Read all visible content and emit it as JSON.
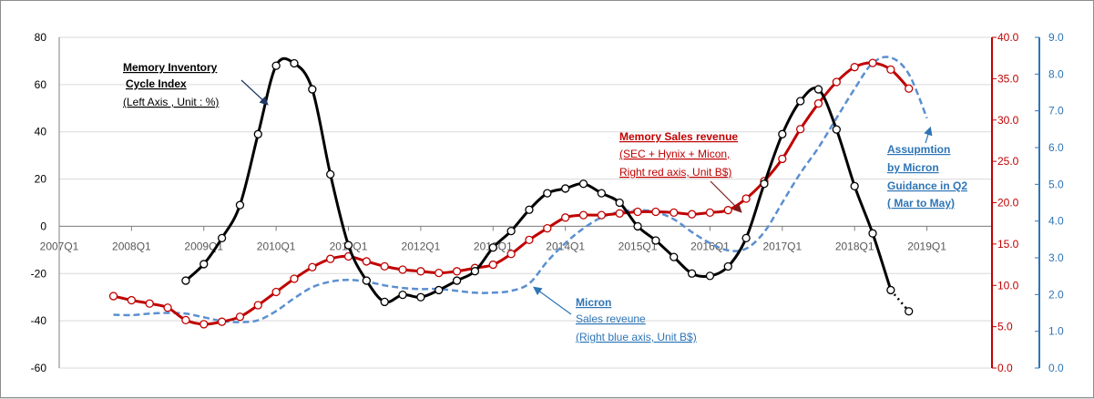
{
  "chart_data": {
    "type": "line",
    "title": "",
    "x_axis": {
      "tick_labels": [
        "2007Q1",
        "2008Q1",
        "2009Q1",
        "2010Q1",
        "2011Q1",
        "2012Q1",
        "2013Q1",
        "2014Q1",
        "2015Q1",
        "2016Q1",
        "2017Q1",
        "2018Q1",
        "2019Q1"
      ],
      "range": [
        2007.0,
        2019.9
      ]
    },
    "axes": {
      "left": {
        "ylim": [
          -60,
          80
        ],
        "tick_labels": [
          "80",
          "60",
          "40",
          "20",
          "0",
          "-20",
          "-40",
          "-60"
        ],
        "color": "#000000"
      },
      "right_red": {
        "ylim": [
          0,
          40
        ],
        "tick_labels": [
          "40.0",
          "35.0",
          "30.0",
          "25.0",
          "20.0",
          "15.0",
          "10.0",
          "5.0",
          "0.0"
        ],
        "color": "#c00000"
      },
      "right_blue": {
        "ylim": [
          0,
          9
        ],
        "tick_labels": [
          "9.0",
          "8.0",
          "7.0",
          "6.0",
          "5.0",
          "4.0",
          "3.0",
          "2.0",
          "1.0",
          "0.0"
        ],
        "color": "#2e75b6"
      }
    },
    "grid": "horizontal",
    "series": [
      {
        "axis": "left",
        "color": "#000000",
        "style": "solid-markers",
        "x": [
          2008.75,
          2009.0,
          2009.25,
          2009.5,
          2009.75,
          2010.0,
          2010.25,
          2010.5,
          2010.75,
          2011.0,
          2011.25,
          2011.5,
          2011.75,
          2012.0,
          2012.25,
          2012.5,
          2012.75,
          2013.0,
          2013.25,
          2013.5,
          2013.75,
          2014.0,
          2014.25,
          2014.5,
          2014.75,
          2015.0,
          2015.25,
          2015.5,
          2015.75,
          2016.0,
          2016.25,
          2016.5,
          2016.75,
          2017.0,
          2017.25,
          2017.5,
          2017.75,
          2018.0,
          2018.25,
          2018.5,
          2018.75
        ],
        "y": [
          -23,
          -16,
          -5,
          9,
          39,
          68,
          69,
          58,
          22,
          -8,
          -23,
          -32,
          -29,
          -30,
          -27,
          -23,
          -19,
          -9,
          -2,
          7,
          14,
          16,
          18,
          14,
          10,
          0,
          -6,
          -13,
          -20,
          -21,
          -17,
          -5,
          18,
          39,
          53,
          58,
          41,
          17,
          -3,
          -27,
          -36
        ]
      },
      {
        "axis": "right_red",
        "color": "#c00000",
        "style": "solid-markers",
        "x": [
          2007.75,
          2008.0,
          2008.25,
          2008.5,
          2008.75,
          2009.0,
          2009.25,
          2009.5,
          2009.75,
          2010.0,
          2010.25,
          2010.5,
          2010.75,
          2011.0,
          2011.25,
          2011.5,
          2011.75,
          2012.0,
          2012.25,
          2012.5,
          2012.75,
          2013.0,
          2013.25,
          2013.5,
          2013.75,
          2014.0,
          2014.25,
          2014.5,
          2014.75,
          2015.0,
          2015.25,
          2015.5,
          2015.75,
          2016.0,
          2016.25,
          2016.5,
          2016.75,
          2017.0,
          2017.25,
          2017.5,
          2017.75,
          2018.0,
          2018.25,
          2018.5,
          2018.75
        ],
        "y": [
          8.7,
          8.2,
          7.8,
          7.3,
          5.8,
          5.3,
          5.6,
          6.2,
          7.6,
          9.2,
          10.8,
          12.2,
          13.2,
          13.5,
          12.9,
          12.3,
          11.9,
          11.7,
          11.5,
          11.7,
          12.1,
          12.5,
          13.8,
          15.5,
          16.9,
          18.2,
          18.5,
          18.5,
          18.7,
          18.9,
          18.9,
          18.8,
          18.6,
          18.8,
          19.1,
          20.5,
          22.6,
          25.3,
          28.9,
          32.0,
          34.6,
          36.4,
          36.9,
          36.1,
          33.8
        ]
      },
      {
        "axis": "right_blue",
        "color": "#5b8fd0",
        "style": "dashed",
        "x": [
          2007.75,
          2008.0,
          2008.25,
          2008.5,
          2008.75,
          2009.0,
          2009.25,
          2009.5,
          2009.75,
          2010.0,
          2010.25,
          2010.5,
          2010.75,
          2011.0,
          2011.25,
          2011.5,
          2011.75,
          2012.0,
          2012.25,
          2012.5,
          2012.75,
          2013.0,
          2013.25,
          2013.5,
          2013.75,
          2014.0,
          2014.25,
          2014.5,
          2014.75,
          2015.0,
          2015.25,
          2015.5,
          2015.75,
          2016.0,
          2016.25,
          2016.5,
          2016.75,
          2017.0,
          2017.25,
          2017.5,
          2017.75,
          2018.0,
          2018.25,
          2018.5,
          2018.75,
          2019.0
        ],
        "y": [
          1.45,
          1.44,
          1.48,
          1.5,
          1.48,
          1.38,
          1.28,
          1.25,
          1.3,
          1.55,
          1.9,
          2.2,
          2.35,
          2.4,
          2.35,
          2.25,
          2.18,
          2.15,
          2.15,
          2.1,
          2.05,
          2.05,
          2.1,
          2.3,
          2.9,
          3.4,
          3.8,
          4.1,
          4.25,
          4.3,
          4.25,
          4.05,
          3.7,
          3.4,
          3.2,
          3.25,
          3.7,
          4.5,
          5.3,
          6.0,
          6.8,
          7.6,
          8.3,
          8.45,
          8.0,
          6.8
        ]
      }
    ],
    "annotations": {
      "inventory": {
        "line1": "Memory Inventory",
        "line2": "Cycle Index",
        "line3": "(Left Axis , Unit : %)"
      },
      "memory_sales": {
        "line1": "Memory Sales revenue",
        "line2": "(SEC + Hynix + Micon,",
        "line3": "Right red axis, Unit B$)"
      },
      "micron": {
        "line1": "Micron",
        "line2": "Sales reveune",
        "line3": "(Right  blue axis, Unit B$)"
      },
      "assumption": {
        "line1": "Assupmtion",
        "line2": "by Micron",
        "line3": "Guidance in Q2",
        "line4": "( Mar to May)"
      }
    }
  }
}
